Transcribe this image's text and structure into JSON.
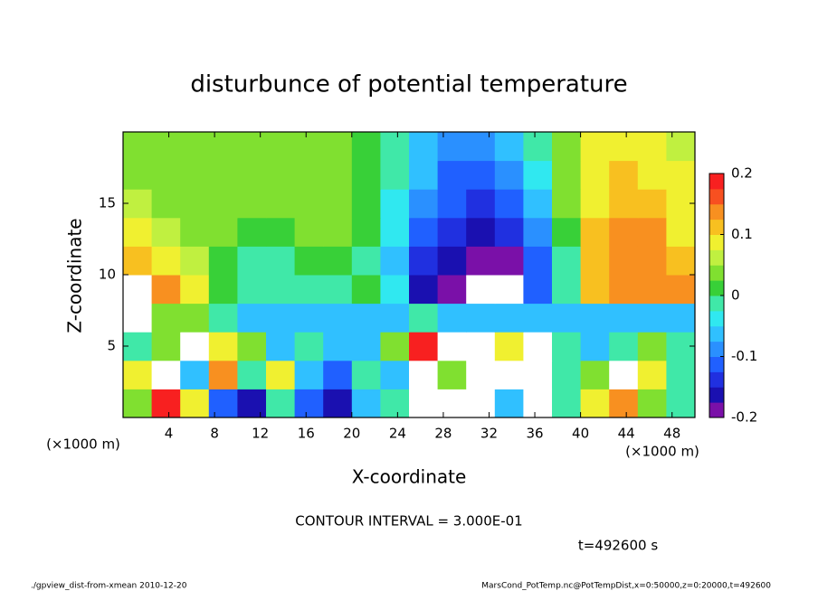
{
  "chart_data": {
    "type": "heatmap",
    "title": "disturbunce of potential temperature",
    "xlabel": "X-coordinate",
    "ylabel": "Z-coordinate",
    "xunit": "(×1000 m)",
    "yunit": "(×1000 m)",
    "contour_note": "CONTOUR INTERVAL = 3.000E-01",
    "time_label": "t=492600 s",
    "footer_left": "./gpview_dist-from-xmean  2010-12-20",
    "footer_right": "MarsCond_PotTemp.nc@PotTempDist,x=0:50000,z=0:20000,t=492600",
    "xlim": [
      0,
      50
    ],
    "ylim": [
      0,
      20
    ],
    "xticks": [
      4,
      8,
      12,
      16,
      20,
      24,
      28,
      32,
      36,
      40,
      44,
      48
    ],
    "yticks": [
      5,
      10,
      15
    ],
    "x": [
      1.25,
      3.75,
      6.25,
      8.75,
      11.25,
      13.75,
      16.25,
      18.75,
      21.25,
      23.75,
      26.25,
      28.75,
      31.25,
      33.75,
      36.25,
      38.75,
      41.25,
      43.75,
      46.25,
      48.75
    ],
    "y": [
      1,
      3,
      5,
      7,
      9,
      11,
      13,
      15,
      17,
      19
    ],
    "z": [
      [
        0.05,
        0.2,
        0.1,
        -0.1,
        -0.15,
        0.0,
        -0.1,
        -0.15,
        -0.05,
        0.0,
        -0.3,
        -0.3,
        -0.3,
        -0.05,
        -0.3,
        0.0,
        0.1,
        0.15,
        0.05,
        0.0
      ],
      [
        0.1,
        0.25,
        -0.05,
        0.15,
        0.0,
        0.1,
        -0.05,
        -0.1,
        0.0,
        -0.05,
        -0.3,
        0.05,
        -0.3,
        -0.3,
        -0.3,
        0.0,
        0.05,
        0.25,
        0.1,
        0.0
      ],
      [
        0.0,
        0.05,
        0.3,
        0.1,
        0.05,
        -0.05,
        0.0,
        -0.05,
        -0.05,
        0.05,
        0.2,
        -0.3,
        -0.3,
        0.1,
        -0.3,
        0.0,
        -0.05,
        0.0,
        0.05,
        0.0
      ],
      [
        0.3,
        0.05,
        0.05,
        0.0,
        -0.05,
        -0.05,
        -0.05,
        -0.05,
        -0.05,
        -0.05,
        0.0,
        -0.05,
        -0.05,
        -0.05,
        -0.05,
        -0.05,
        -0.05,
        -0.05,
        -0.05,
        -0.05
      ],
      [
        0.3,
        0.15,
        0.08,
        0.02,
        0.0,
        0.0,
        0.0,
        0.0,
        0.01,
        -0.03,
        -0.15,
        -0.19,
        -0.3,
        -0.3,
        -0.12,
        -0.02,
        0.12,
        0.14,
        0.15,
        0.13
      ],
      [
        0.12,
        0.1,
        0.06,
        0.02,
        0.0,
        0.0,
        0.01,
        0.01,
        0.0,
        -0.05,
        -0.13,
        -0.17,
        -0.19,
        -0.18,
        -0.1,
        0.0,
        0.12,
        0.14,
        0.14,
        0.12
      ],
      [
        0.08,
        0.07,
        0.05,
        0.03,
        0.02,
        0.02,
        0.03,
        0.03,
        0.02,
        -0.04,
        -0.11,
        -0.14,
        -0.16,
        -0.14,
        -0.08,
        0.02,
        0.11,
        0.13,
        0.13,
        0.1
      ],
      [
        0.06,
        0.05,
        0.04,
        0.03,
        0.03,
        0.03,
        0.03,
        0.03,
        0.02,
        -0.03,
        -0.09,
        -0.12,
        -0.13,
        -0.11,
        -0.06,
        0.04,
        0.1,
        0.12,
        0.12,
        0.09
      ],
      [
        0.05,
        0.04,
        0.03,
        0.03,
        0.03,
        0.03,
        0.03,
        0.03,
        0.02,
        -0.02,
        -0.07,
        -0.1,
        -0.1,
        -0.08,
        -0.03,
        0.05,
        0.09,
        0.11,
        0.1,
        0.08
      ],
      [
        0.04,
        0.03,
        0.03,
        0.03,
        0.03,
        0.03,
        0.03,
        0.03,
        0.02,
        -0.01,
        -0.05,
        -0.08,
        -0.08,
        -0.06,
        -0.01,
        0.05,
        0.08,
        0.1,
        0.09,
        0.07
      ]
    ],
    "clim": [
      -0.2,
      0.2
    ],
    "cticks": [
      -0.2,
      -0.1,
      0,
      0.1,
      0.2
    ],
    "levels": [
      -0.2,
      -0.175,
      -0.15,
      -0.125,
      -0.1,
      -0.075,
      -0.05,
      -0.025,
      0,
      0.025,
      0.05,
      0.075,
      0.1,
      0.125,
      0.15,
      0.175,
      0.2
    ],
    "colors": [
      "#7a10a8",
      "#1a10b0",
      "#2030e0",
      "#2060ff",
      "#2a90ff",
      "#30c0ff",
      "#30e8f0",
      "#40e8a8",
      "#38d038",
      "#80e030",
      "#c0f040",
      "#f0f030",
      "#f8c020",
      "#f89020",
      "#f85020",
      "#f82020"
    ],
    "out_of_range_color": "#ffffff"
  }
}
